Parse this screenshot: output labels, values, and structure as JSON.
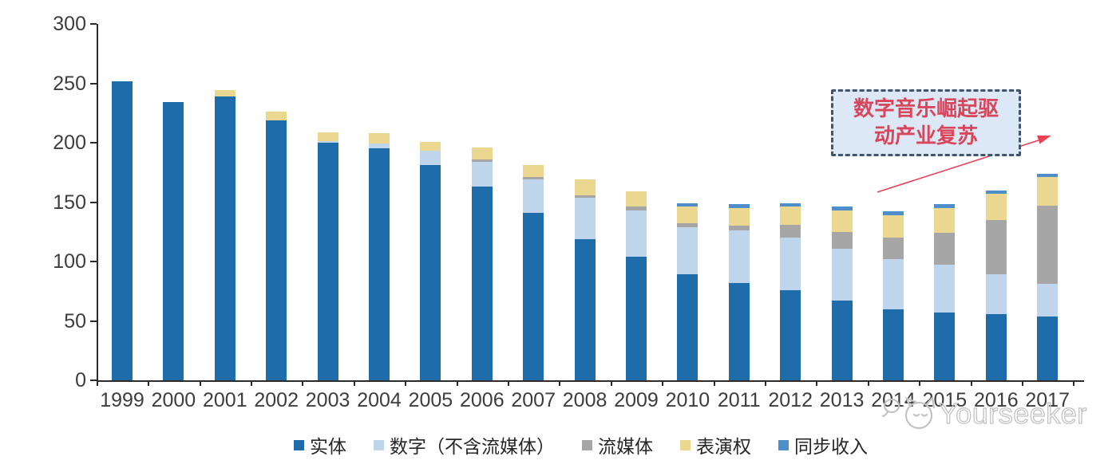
{
  "chart_data": {
    "type": "bar",
    "stacked": true,
    "categories": [
      "1999",
      "2000",
      "2001",
      "2002",
      "2003",
      "2004",
      "2005",
      "2006",
      "2007",
      "2008",
      "2009",
      "2010",
      "2011",
      "2012",
      "2013",
      "2014",
      "2015",
      "2016",
      "2017"
    ],
    "series": [
      {
        "name": "实体",
        "color": "#1E6CAA",
        "values": [
          252,
          234,
          239,
          219,
          200,
          195,
          181,
          163,
          141,
          119,
          104,
          89,
          82,
          76,
          67,
          60,
          57,
          56,
          54
        ]
      },
      {
        "name": "数字（不含流媒体）",
        "color": "#BFD5EC",
        "values": [
          0,
          0,
          0,
          0,
          1,
          4,
          12,
          21,
          28,
          35,
          39,
          40,
          44,
          44,
          44,
          42,
          40,
          33,
          27
        ]
      },
      {
        "name": "流媒体",
        "color": "#A6A6A6",
        "values": [
          0,
          0,
          0,
          0,
          0,
          0,
          0,
          2,
          2,
          2,
          3,
          3,
          4,
          11,
          14,
          18,
          27,
          46,
          66
        ]
      },
      {
        "name": "表演权",
        "color": "#EBD78F",
        "values": [
          0,
          0,
          5,
          7,
          8,
          9,
          8,
          10,
          10,
          13,
          13,
          14,
          15,
          15,
          18,
          19,
          21,
          22,
          24
        ]
      },
      {
        "name": "同步收入",
        "color": "#4E8FCB",
        "values": [
          0,
          0,
          0,
          0,
          0,
          0,
          0,
          0,
          0,
          0,
          0,
          3,
          3,
          3,
          3,
          3,
          3,
          3,
          3
        ]
      }
    ],
    "ylim": [
      0,
      300
    ],
    "yticks": [
      0,
      50,
      100,
      150,
      200,
      250,
      300
    ],
    "grid": false,
    "legend_position": "bottom",
    "title": "",
    "xlabel": "",
    "ylabel": ""
  },
  "annotation": {
    "line1": "数字音乐崛起驱",
    "line2": "动产业复苏",
    "box_fill": "#DCE8F6",
    "box_border": "#44546A",
    "text_color": "#D9455A",
    "arrow_color": "#EC4054"
  },
  "watermark": {
    "text": "Yourseeker",
    "color": "#C3C3C3"
  }
}
